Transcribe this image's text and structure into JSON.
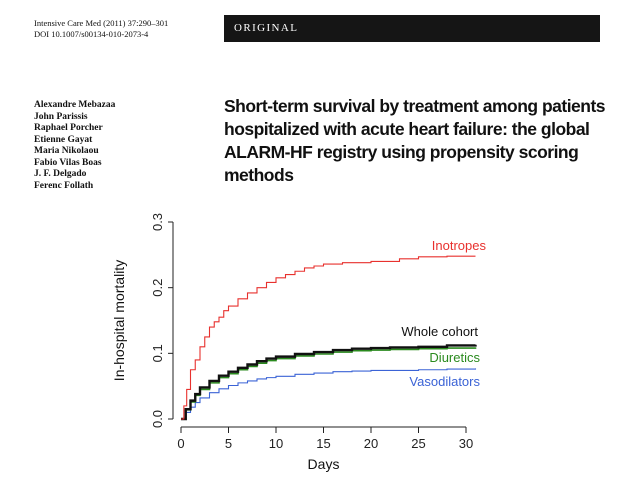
{
  "header": {
    "journal_line": "Intensive Care Med (2011) 37:290–301",
    "doi_line": "DOI 10.1007/s00134-010-2073-4",
    "banner": "ORIGINAL"
  },
  "authors": [
    "Alexandre Mebazaa",
    "John Parissis",
    "Raphael Porcher",
    "Etienne Gayat",
    "Maria Nikolaou",
    "Fabio Vilas Boas",
    "J. F. Delgado",
    "Ferenc Follath"
  ],
  "title": "Short-term survival by treatment among patients hospitalized with acute heart failure: the global ALARM-HF registry using propensity scoring methods",
  "chart_data": {
    "type": "line",
    "title": "",
    "xlabel": "Days",
    "ylabel": "In-hospital mortality",
    "xlim": [
      0,
      31
    ],
    "ylim": [
      0,
      0.3
    ],
    "xticks": [
      "0",
      "5",
      "10",
      "15",
      "20",
      "25",
      "30"
    ],
    "yticks": [
      "0.0",
      "0.1",
      "0.2",
      "0.3"
    ],
    "grid": false,
    "legend": "labels at line ends",
    "series": [
      {
        "name": "Inotropes",
        "color": "#e8312e",
        "points": [
          [
            0,
            0.0
          ],
          [
            0.3,
            0.02
          ],
          [
            0.6,
            0.045
          ],
          [
            1,
            0.075
          ],
          [
            1.5,
            0.09
          ],
          [
            2,
            0.11
          ],
          [
            2.5,
            0.125
          ],
          [
            3,
            0.14
          ],
          [
            3.5,
            0.148
          ],
          [
            4,
            0.155
          ],
          [
            4.5,
            0.165
          ],
          [
            5,
            0.172
          ],
          [
            6,
            0.183
          ],
          [
            7,
            0.192
          ],
          [
            8,
            0.2
          ],
          [
            9,
            0.208
          ],
          [
            10,
            0.215
          ],
          [
            11,
            0.22
          ],
          [
            12,
            0.225
          ],
          [
            13,
            0.23
          ],
          [
            14,
            0.233
          ],
          [
            15,
            0.236
          ],
          [
            17,
            0.238
          ],
          [
            20,
            0.24
          ],
          [
            23,
            0.244
          ],
          [
            25,
            0.247
          ],
          [
            28,
            0.248
          ],
          [
            31,
            0.248
          ]
        ]
      },
      {
        "name": "Whole cohort",
        "color": "#111111",
        "points": [
          [
            0,
            0.0
          ],
          [
            0.5,
            0.015
          ],
          [
            1,
            0.028
          ],
          [
            1.5,
            0.038
          ],
          [
            2,
            0.048
          ],
          [
            3,
            0.058
          ],
          [
            4,
            0.066
          ],
          [
            5,
            0.072
          ],
          [
            6,
            0.078
          ],
          [
            7,
            0.083
          ],
          [
            8,
            0.088
          ],
          [
            9,
            0.092
          ],
          [
            10,
            0.095
          ],
          [
            12,
            0.099
          ],
          [
            14,
            0.102
          ],
          [
            16,
            0.105
          ],
          [
            18,
            0.107
          ],
          [
            20,
            0.108
          ],
          [
            22,
            0.109
          ],
          [
            25,
            0.11
          ],
          [
            28,
            0.112
          ],
          [
            31,
            0.113
          ]
        ]
      },
      {
        "name": "Diuretics",
        "color": "#2a8a1e",
        "points": [
          [
            0,
            0.0
          ],
          [
            0.5,
            0.014
          ],
          [
            1,
            0.026
          ],
          [
            1.5,
            0.036
          ],
          [
            2,
            0.045
          ],
          [
            3,
            0.055
          ],
          [
            4,
            0.063
          ],
          [
            5,
            0.069
          ],
          [
            6,
            0.075
          ],
          [
            7,
            0.08
          ],
          [
            8,
            0.085
          ],
          [
            9,
            0.089
          ],
          [
            10,
            0.092
          ],
          [
            12,
            0.096
          ],
          [
            14,
            0.099
          ],
          [
            16,
            0.102
          ],
          [
            18,
            0.104
          ],
          [
            20,
            0.105
          ],
          [
            22,
            0.106
          ],
          [
            25,
            0.107
          ],
          [
            28,
            0.108
          ],
          [
            31,
            0.109
          ]
        ]
      },
      {
        "name": "Vasodilators",
        "color": "#3b63d6",
        "points": [
          [
            0,
            0.0
          ],
          [
            0.5,
            0.01
          ],
          [
            1,
            0.018
          ],
          [
            1.5,
            0.025
          ],
          [
            2,
            0.032
          ],
          [
            3,
            0.04
          ],
          [
            4,
            0.046
          ],
          [
            5,
            0.051
          ],
          [
            6,
            0.055
          ],
          [
            7,
            0.058
          ],
          [
            8,
            0.061
          ],
          [
            9,
            0.063
          ],
          [
            10,
            0.065
          ],
          [
            12,
            0.068
          ],
          [
            14,
            0.07
          ],
          [
            16,
            0.072
          ],
          [
            18,
            0.073
          ],
          [
            20,
            0.074
          ],
          [
            25,
            0.075
          ],
          [
            28,
            0.076
          ],
          [
            31,
            0.077
          ]
        ]
      }
    ]
  }
}
